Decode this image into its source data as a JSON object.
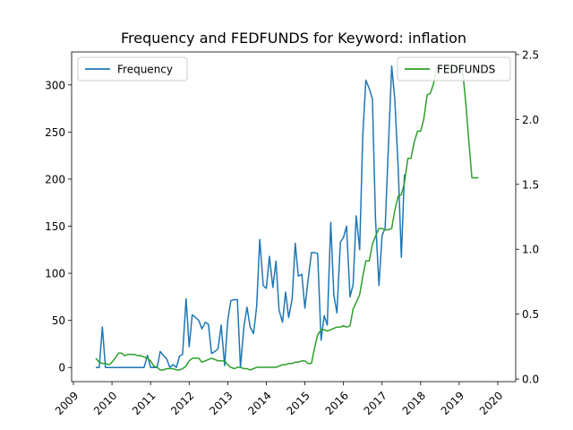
{
  "chart_data": {
    "type": "line",
    "title": "Frequency and FEDFUNDS for Keyword: inflation",
    "xlabel": "",
    "ylabel_left": "",
    "ylabel_right": "",
    "x_ticks": [
      "2009",
      "2010",
      "2011",
      "2012",
      "2013",
      "2014",
      "2015",
      "2016",
      "2017",
      "2018",
      "2019",
      "2020"
    ],
    "x_range": [
      2009.0,
      2020.0
    ],
    "ylim_left": [
      -15,
      335
    ],
    "yticks_left": [
      0,
      50,
      100,
      150,
      200,
      250,
      300
    ],
    "ylim_right": [
      -0.02,
      2.52
    ],
    "yticks_right": [
      0.0,
      0.5,
      1.0,
      1.5,
      2.0,
      2.5
    ],
    "grid": false,
    "legend": [
      {
        "name": "Frequency",
        "placement": "upper-left",
        "color": "#1f77b4"
      },
      {
        "name": "FEDFUNDS",
        "placement": "upper-right",
        "color": "#2ca02c"
      }
    ],
    "series": [
      {
        "name": "Frequency",
        "axis": "left",
        "color": "#1f77b4",
        "points": [
          [
            2009.58,
            0
          ],
          [
            2009.67,
            0
          ],
          [
            2009.75,
            43
          ],
          [
            2009.83,
            0
          ],
          [
            2009.92,
            0
          ],
          [
            2010.0,
            0
          ],
          [
            2010.17,
            0
          ],
          [
            2010.33,
            0
          ],
          [
            2010.5,
            0
          ],
          [
            2010.67,
            0
          ],
          [
            2010.83,
            0
          ],
          [
            2010.92,
            13
          ],
          [
            2011.0,
            0
          ],
          [
            2011.08,
            0
          ],
          [
            2011.17,
            0
          ],
          [
            2011.25,
            17
          ],
          [
            2011.33,
            13
          ],
          [
            2011.42,
            9
          ],
          [
            2011.5,
            0
          ],
          [
            2011.58,
            3
          ],
          [
            2011.67,
            0
          ],
          [
            2011.75,
            12
          ],
          [
            2011.83,
            14
          ],
          [
            2011.92,
            73
          ],
          [
            2012.0,
            22
          ],
          [
            2012.08,
            56
          ],
          [
            2012.17,
            53
          ],
          [
            2012.25,
            50
          ],
          [
            2012.33,
            41
          ],
          [
            2012.42,
            48
          ],
          [
            2012.5,
            46
          ],
          [
            2012.58,
            15
          ],
          [
            2012.67,
            17
          ],
          [
            2012.75,
            20
          ],
          [
            2012.83,
            45
          ],
          [
            2012.92,
            2
          ],
          [
            2013.0,
            50
          ],
          [
            2013.08,
            71
          ],
          [
            2013.17,
            72
          ],
          [
            2013.25,
            72
          ],
          [
            2013.33,
            0
          ],
          [
            2013.42,
            44
          ],
          [
            2013.5,
            64
          ],
          [
            2013.58,
            43
          ],
          [
            2013.67,
            36
          ],
          [
            2013.75,
            65
          ],
          [
            2013.83,
            136
          ],
          [
            2013.92,
            87
          ],
          [
            2014.0,
            84
          ],
          [
            2014.08,
            118
          ],
          [
            2014.17,
            85
          ],
          [
            2014.25,
            113
          ],
          [
            2014.33,
            61
          ],
          [
            2014.42,
            48
          ],
          [
            2014.5,
            80
          ],
          [
            2014.58,
            53
          ],
          [
            2014.67,
            73
          ],
          [
            2014.75,
            132
          ],
          [
            2014.83,
            97
          ],
          [
            2014.92,
            99
          ],
          [
            2015.0,
            63
          ],
          [
            2015.08,
            92
          ],
          [
            2015.17,
            122
          ],
          [
            2015.25,
            122
          ],
          [
            2015.33,
            121
          ],
          [
            2015.42,
            29
          ],
          [
            2015.5,
            55
          ],
          [
            2015.58,
            45
          ],
          [
            2015.67,
            154
          ],
          [
            2015.75,
            77
          ],
          [
            2015.83,
            58
          ],
          [
            2015.92,
            133
          ],
          [
            2016.0,
            138
          ],
          [
            2016.08,
            150
          ],
          [
            2016.17,
            75
          ],
          [
            2016.25,
            88
          ],
          [
            2016.33,
            161
          ],
          [
            2016.42,
            125
          ],
          [
            2016.5,
            246
          ],
          [
            2016.58,
            305
          ],
          [
            2016.67,
            296
          ],
          [
            2016.75,
            285
          ],
          [
            2016.83,
            158
          ],
          [
            2016.92,
            87
          ],
          [
            2017.0,
            140
          ],
          [
            2017.08,
            148
          ],
          [
            2017.17,
            240
          ],
          [
            2017.25,
            320
          ],
          [
            2017.33,
            285
          ],
          [
            2017.42,
            210
          ],
          [
            2017.5,
            117
          ],
          [
            2017.58,
            205
          ]
        ]
      },
      {
        "name": "FEDFUNDS",
        "axis": "right",
        "color": "#2ca02c",
        "points": [
          [
            2009.58,
            0.16
          ],
          [
            2009.67,
            0.13
          ],
          [
            2009.75,
            0.12
          ],
          [
            2009.83,
            0.12
          ],
          [
            2009.92,
            0.11
          ],
          [
            2010.0,
            0.13
          ],
          [
            2010.08,
            0.16
          ],
          [
            2010.17,
            0.2
          ],
          [
            2010.25,
            0.2
          ],
          [
            2010.33,
            0.18
          ],
          [
            2010.42,
            0.19
          ],
          [
            2010.5,
            0.19
          ],
          [
            2010.58,
            0.19
          ],
          [
            2010.67,
            0.18
          ],
          [
            2010.75,
            0.18
          ],
          [
            2010.83,
            0.17
          ],
          [
            2010.92,
            0.16
          ],
          [
            2011.0,
            0.14
          ],
          [
            2011.08,
            0.1
          ],
          [
            2011.17,
            0.09
          ],
          [
            2011.25,
            0.07
          ],
          [
            2011.33,
            0.07
          ],
          [
            2011.42,
            0.08
          ],
          [
            2011.5,
            0.08
          ],
          [
            2011.58,
            0.08
          ],
          [
            2011.67,
            0.07
          ],
          [
            2011.75,
            0.07
          ],
          [
            2011.83,
            0.08
          ],
          [
            2011.92,
            0.1
          ],
          [
            2012.0,
            0.14
          ],
          [
            2012.08,
            0.16
          ],
          [
            2012.17,
            0.16
          ],
          [
            2012.25,
            0.16
          ],
          [
            2012.33,
            0.13
          ],
          [
            2012.42,
            0.14
          ],
          [
            2012.5,
            0.15
          ],
          [
            2012.58,
            0.16
          ],
          [
            2012.67,
            0.15
          ],
          [
            2012.75,
            0.14
          ],
          [
            2012.83,
            0.14
          ],
          [
            2012.92,
            0.14
          ],
          [
            2013.0,
            0.11
          ],
          [
            2013.08,
            0.09
          ],
          [
            2013.17,
            0.08
          ],
          [
            2013.25,
            0.09
          ],
          [
            2013.33,
            0.09
          ],
          [
            2013.42,
            0.08
          ],
          [
            2013.5,
            0.08
          ],
          [
            2013.58,
            0.07
          ],
          [
            2013.67,
            0.08
          ],
          [
            2013.75,
            0.09
          ],
          [
            2013.83,
            0.09
          ],
          [
            2013.92,
            0.09
          ],
          [
            2014.0,
            0.09
          ],
          [
            2014.08,
            0.09
          ],
          [
            2014.17,
            0.09
          ],
          [
            2014.25,
            0.09
          ],
          [
            2014.33,
            0.1
          ],
          [
            2014.42,
            0.11
          ],
          [
            2014.5,
            0.11
          ],
          [
            2014.58,
            0.12
          ],
          [
            2014.67,
            0.12
          ],
          [
            2014.75,
            0.13
          ],
          [
            2014.83,
            0.13
          ],
          [
            2014.92,
            0.14
          ],
          [
            2015.0,
            0.14
          ],
          [
            2015.08,
            0.12
          ],
          [
            2015.17,
            0.12
          ],
          [
            2015.25,
            0.24
          ],
          [
            2015.33,
            0.34
          ],
          [
            2015.42,
            0.38
          ],
          [
            2015.5,
            0.38
          ],
          [
            2015.58,
            0.37
          ],
          [
            2015.67,
            0.38
          ],
          [
            2015.75,
            0.39
          ],
          [
            2015.83,
            0.4
          ],
          [
            2015.92,
            0.4
          ],
          [
            2016.0,
            0.41
          ],
          [
            2016.08,
            0.4
          ],
          [
            2016.17,
            0.41
          ],
          [
            2016.25,
            0.54
          ],
          [
            2016.33,
            0.59
          ],
          [
            2016.42,
            0.65
          ],
          [
            2016.5,
            0.79
          ],
          [
            2016.58,
            0.91
          ],
          [
            2016.67,
            0.91
          ],
          [
            2016.75,
            1.04
          ],
          [
            2016.83,
            1.1
          ],
          [
            2016.92,
            1.16
          ],
          [
            2017.0,
            1.16
          ],
          [
            2017.08,
            1.15
          ],
          [
            2017.17,
            1.15
          ],
          [
            2017.25,
            1.16
          ],
          [
            2017.33,
            1.3
          ],
          [
            2017.42,
            1.41
          ],
          [
            2017.5,
            1.42
          ],
          [
            2017.58,
            1.51
          ],
          [
            2017.67,
            1.7
          ],
          [
            2017.75,
            1.7
          ],
          [
            2017.83,
            1.82
          ],
          [
            2017.92,
            1.91
          ],
          [
            2018.0,
            1.91
          ],
          [
            2018.08,
            2.0
          ],
          [
            2018.17,
            2.19
          ],
          [
            2018.25,
            2.2
          ],
          [
            2018.33,
            2.27
          ],
          [
            2018.42,
            2.4
          ],
          [
            2018.5,
            2.4
          ],
          [
            2018.58,
            2.41
          ],
          [
            2018.67,
            2.42
          ],
          [
            2018.75,
            2.39
          ],
          [
            2018.83,
            2.38
          ],
          [
            2018.92,
            2.4
          ],
          [
            2019.0,
            2.38
          ],
          [
            2019.08,
            2.4
          ],
          [
            2019.17,
            2.13
          ],
          [
            2019.25,
            1.83
          ],
          [
            2019.33,
            1.55
          ],
          [
            2019.42,
            1.55
          ],
          [
            2019.5,
            1.55
          ]
        ]
      }
    ]
  }
}
